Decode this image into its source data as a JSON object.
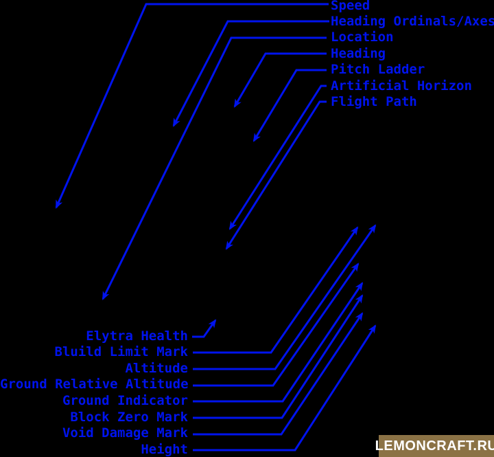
{
  "colors": {
    "accent": "#0013ee",
    "background": "#000000",
    "watermark_bg": "#8b7245",
    "watermark_text": "#ffffff"
  },
  "top_labels": [
    {
      "id": "speed",
      "label": "Speed"
    },
    {
      "id": "heading-ordinals",
      "label": "Heading Ordinals/Axes"
    },
    {
      "id": "location",
      "label": "Location"
    },
    {
      "id": "heading",
      "label": "Heading"
    },
    {
      "id": "pitch-ladder",
      "label": "Pitch Ladder"
    },
    {
      "id": "artificial-horizon",
      "label": "Artificial Horizon"
    },
    {
      "id": "flight-path",
      "label": "Flight Path"
    }
  ],
  "bottom_labels": [
    {
      "id": "elytra-health",
      "label": "Elytra Health"
    },
    {
      "id": "build-limit-mark",
      "label": "Bluild Limit Mark"
    },
    {
      "id": "altitude",
      "label": "Altitude"
    },
    {
      "id": "ground-relative-altitude",
      "label": "Ground Relative Altitude"
    },
    {
      "id": "ground-indicator",
      "label": "Ground Indicator"
    },
    {
      "id": "block-zero-mark",
      "label": "Block Zero Mark"
    },
    {
      "id": "void-damage-mark",
      "label": "Void Damage Mark"
    },
    {
      "id": "height",
      "label": "Height"
    }
  ],
  "watermark": {
    "text": "LEMONCRAFT.RU"
  }
}
